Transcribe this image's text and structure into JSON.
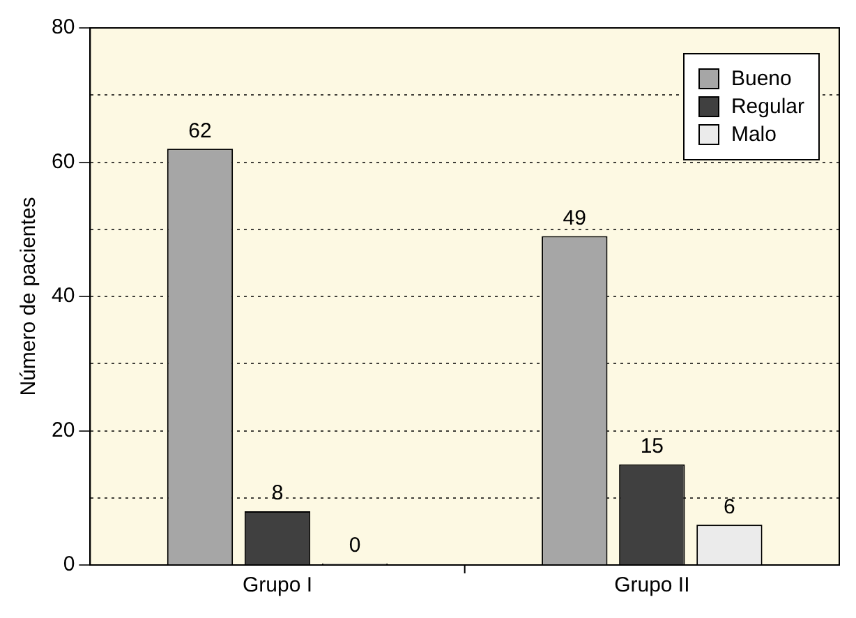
{
  "chart_data": {
    "type": "bar",
    "ylabel": "Número de pacientes",
    "categories": [
      "Grupo I",
      "Grupo II"
    ],
    "series": [
      {
        "name": "Bueno",
        "color": "#a6a6a6",
        "values": [
          62,
          49
        ]
      },
      {
        "name": "Regular",
        "color": "#404040",
        "values": [
          8,
          15
        ]
      },
      {
        "name": "Malo",
        "color": "#ebebeb",
        "values": [
          0,
          6
        ]
      }
    ],
    "ylim": [
      0,
      80
    ],
    "yticks": [
      0,
      {
        "value": 10,
        "label": null
      },
      20,
      {
        "value": 30,
        "label": null
      },
      40,
      {
        "value": 50,
        "label": null
      },
      60,
      {
        "value": 70,
        "label": null
      },
      80
    ],
    "grid": "y",
    "legend": "top right",
    "data_labels": true
  }
}
